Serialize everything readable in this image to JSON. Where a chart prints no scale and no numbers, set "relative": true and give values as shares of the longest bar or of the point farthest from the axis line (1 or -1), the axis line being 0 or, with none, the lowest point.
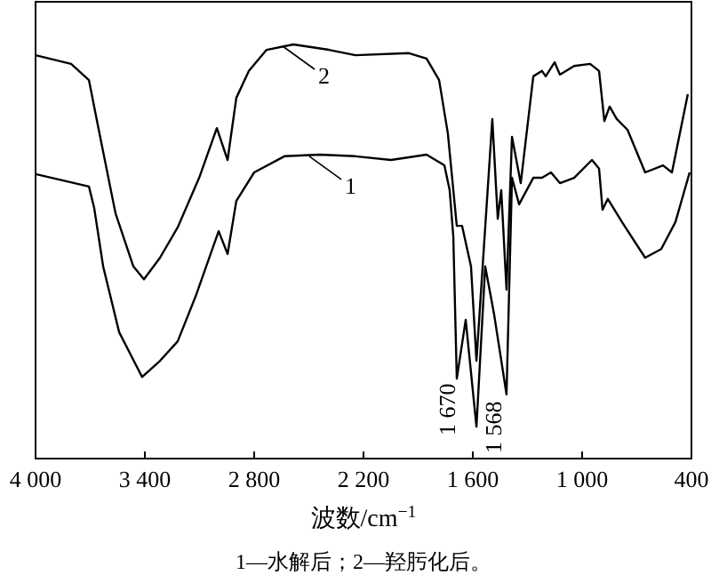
{
  "chart_data": {
    "type": "line",
    "relative": true,
    "xlabel": "波数/cm$^{−1}$",
    "xlim": [
      4000,
      400
    ],
    "xticks": [
      {
        "value": 4000,
        "label": "4 000"
      },
      {
        "value": 3400,
        "label": "3 400"
      },
      {
        "value": 2800,
        "label": "2 800"
      },
      {
        "value": 2200,
        "label": "2 200"
      },
      {
        "value": 1600,
        "label": "1 600"
      },
      {
        "value": 1000,
        "label": "1 000"
      },
      400
    ],
    "tick_labels": "x",
    "legend": "top",
    "marker": "none",
    "line_style": "solid",
    "series": [
      {
        "name": "1",
        "color": "#000000",
        "x": [
          4000,
          3707,
          3678,
          3629,
          3541,
          3415,
          3317,
          3220,
          3122,
          2995,
          2946,
          2898,
          2800,
          2634,
          2439,
          2244,
          2049,
          1854,
          1756,
          1727,
          1707,
          1688,
          1639,
          1580,
          1532,
          1483,
          1415,
          1385,
          1346,
          1268,
          1220,
          1171,
          1122,
          1044,
          946,
          907,
          888,
          859,
          781,
          654,
          566,
          488,
          410
        ],
        "values": [
          0.687,
          0.657,
          0.605,
          0.464,
          0.305,
          0.197,
          0.236,
          0.283,
          0.391,
          0.549,
          0.494,
          0.622,
          0.691,
          0.73,
          0.734,
          0.73,
          0.721,
          0.734,
          0.708,
          0.648,
          0.536,
          0.193,
          0.335,
          0.077,
          0.464,
          0.348,
          0.155,
          0.678,
          0.614,
          0.678,
          0.678,
          0.691,
          0.665,
          0.678,
          0.721,
          0.7,
          0.601,
          0.627,
          0.571,
          0.485,
          0.506,
          0.571,
          0.691
        ]
      },
      {
        "name": "2",
        "color": "#000000",
        "x": [
          4000,
          3805,
          3707,
          3659,
          3561,
          3463,
          3405,
          3317,
          3220,
          3102,
          3005,
          2946,
          2898,
          2829,
          2732,
          2585,
          2390,
          2244,
          1951,
          1854,
          1785,
          1737,
          1688,
          1659,
          1610,
          1580,
          1493,
          1463,
          1444,
          1415,
          1385,
          1337,
          1268,
          1220,
          1200,
          1151,
          1122,
          1044,
          956,
          907,
          878,
          849,
          810,
          751,
          654,
          556,
          507,
          420
        ],
        "values": [
          0.974,
          0.953,
          0.914,
          0.807,
          0.592,
          0.464,
          0.433,
          0.485,
          0.558,
          0.678,
          0.798,
          0.721,
          0.871,
          0.936,
          0.987,
          1.0,
          0.987,
          0.974,
          0.979,
          0.966,
          0.914,
          0.785,
          0.562,
          0.562,
          0.464,
          0.236,
          0.82,
          0.579,
          0.648,
          0.408,
          0.777,
          0.665,
          0.923,
          0.936,
          0.923,
          0.957,
          0.927,
          0.948,
          0.953,
          0.936,
          0.815,
          0.85,
          0.82,
          0.794,
          0.691,
          0.708,
          0.691,
          0.88
        ]
      }
    ],
    "annotations": [
      "1 670",
      "1 568",
      "1—水解后；2—羟肟化后。"
    ]
  }
}
